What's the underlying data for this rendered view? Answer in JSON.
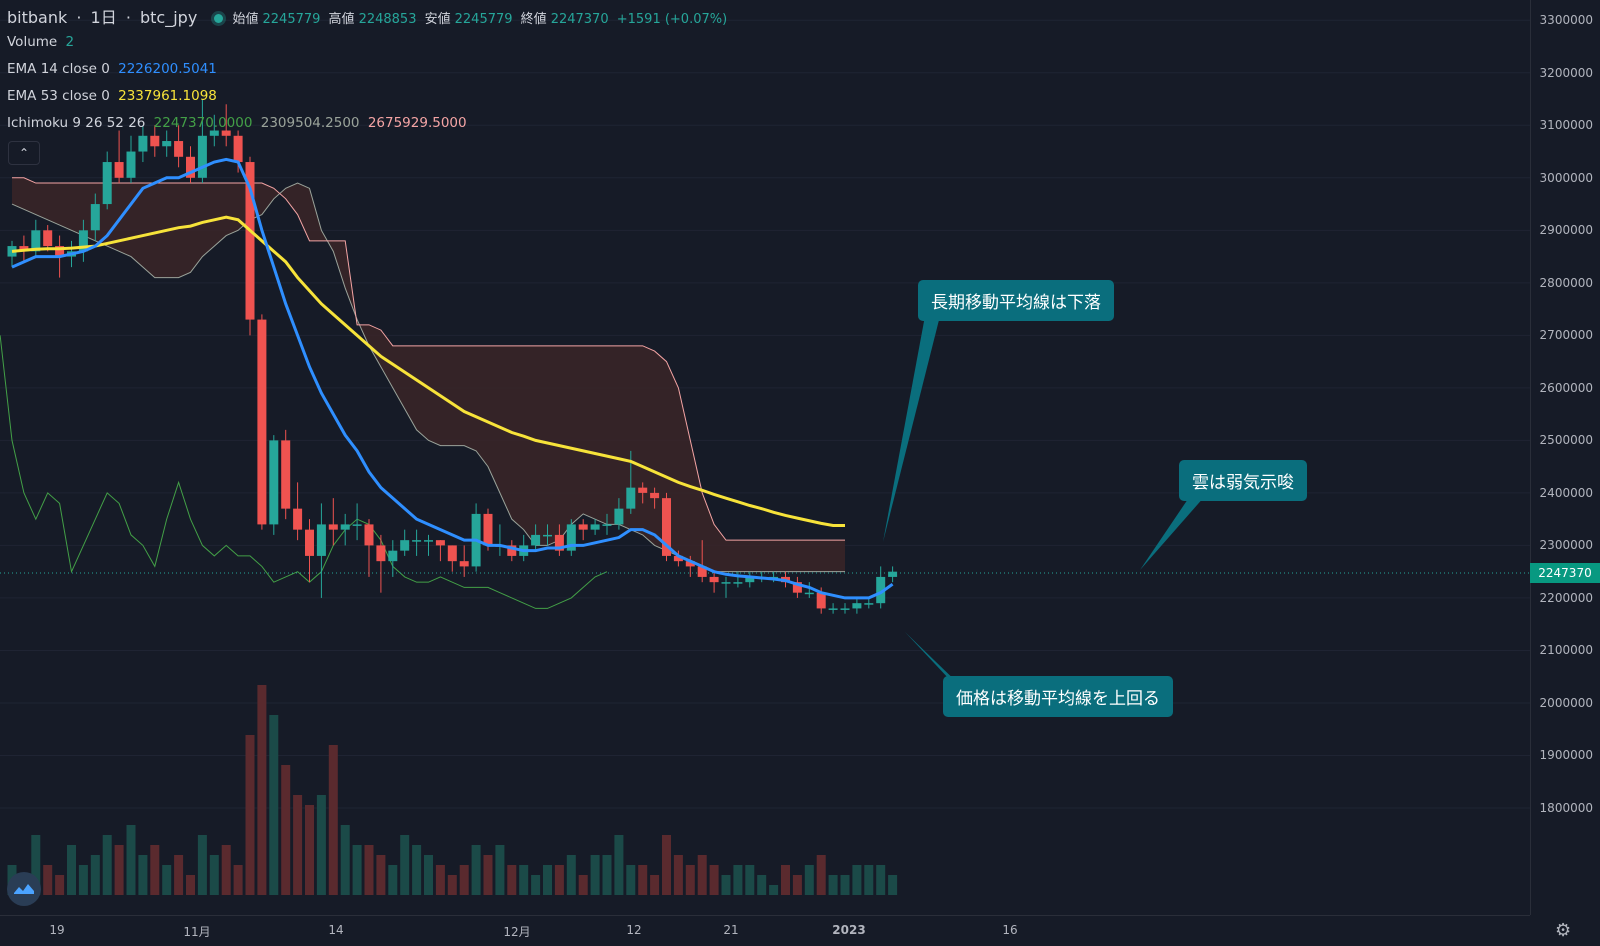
{
  "header": {
    "exchange": "bitbank",
    "interval": "1日",
    "symbol": "btc_jpy",
    "open_label": "始値",
    "open": "2245779",
    "high_label": "高値",
    "high": "2248853",
    "low_label": "安値",
    "low": "2245779",
    "close_label": "終値",
    "close": "2247370",
    "change": "+1591 (+0.07%)"
  },
  "indicators": {
    "volume_label": "Volume",
    "volume_value": "2",
    "ema14_label": "EMA 14 close 0",
    "ema14_value": "2226200.5041",
    "ema53_label": "EMA 53 close 0",
    "ema53_value": "2337961.1098",
    "ichimoku_label": "Ichimoku 9 26 52 26",
    "ichimoku_v1": "2247370.0000",
    "ichimoku_v2": "2309504.2500",
    "ichimoku_v3": "2675929.5000"
  },
  "collapse_icon": "chevron-up-icon",
  "price_tag": "2247370",
  "annotations": {
    "a1": "長期移動平均線は下落",
    "a2": "雲は弱気示唆",
    "a3": "価格は移動平均線を上回る"
  },
  "colors": {
    "up": "#26a69a",
    "down": "#ef5350",
    "ema14": "#2f8fff",
    "ema53": "#f7e33a",
    "chikou": "#43a047",
    "span_a": "#9aa39a",
    "span_b": "#f4a4a4",
    "cloud_bear": "#3a2428",
    "cloud_bull": "#1f3530",
    "callout": "#0a6e7d"
  },
  "chart_data": {
    "type": "candlestick",
    "title": "",
    "y_ticks": [
      1800000,
      1900000,
      2000000,
      2100000,
      2200000,
      2300000,
      2400000,
      2500000,
      2600000,
      2700000,
      2800000,
      2900000,
      3000000,
      3100000,
      3200000,
      3300000
    ],
    "x_ticks": [
      "19",
      "11月",
      "14",
      "12月",
      "12",
      "21",
      "2023",
      "16"
    ],
    "ylim": [
      1720000,
      3310000
    ],
    "last_price": 2247370,
    "candles": [
      [
        2850000,
        2870000,
        2880000,
        2830000
      ],
      [
        2870000,
        2860000,
        2890000,
        2840000
      ],
      [
        2860000,
        2900000,
        2920000,
        2850000
      ],
      [
        2900000,
        2870000,
        2910000,
        2860000
      ],
      [
        2870000,
        2850000,
        2890000,
        2810000
      ],
      [
        2850000,
        2860000,
        2880000,
        2830000
      ],
      [
        2860000,
        2900000,
        2920000,
        2840000
      ],
      [
        2900000,
        2950000,
        2970000,
        2880000
      ],
      [
        2950000,
        3030000,
        3050000,
        2940000
      ],
      [
        3030000,
        3000000,
        3090000,
        2990000
      ],
      [
        3000000,
        3050000,
        3080000,
        2990000
      ],
      [
        3050000,
        3080000,
        3100000,
        3030000
      ],
      [
        3080000,
        3060000,
        3100000,
        3040000
      ],
      [
        3060000,
        3070000,
        3090000,
        3040000
      ],
      [
        3070000,
        3040000,
        3100000,
        3020000
      ],
      [
        3040000,
        3000000,
        3060000,
        2990000
      ],
      [
        3000000,
        3080000,
        3150000,
        2990000
      ],
      [
        3080000,
        3090000,
        3120000,
        3060000
      ],
      [
        3090000,
        3080000,
        3140000,
        3060000
      ],
      [
        3080000,
        3030000,
        3090000,
        3010000
      ],
      [
        3030000,
        2730000,
        3040000,
        2700000
      ],
      [
        2730000,
        2340000,
        2740000,
        2330000
      ],
      [
        2340000,
        2500000,
        2510000,
        2320000
      ],
      [
        2500000,
        2370000,
        2520000,
        2350000
      ],
      [
        2370000,
        2330000,
        2420000,
        2310000
      ],
      [
        2330000,
        2280000,
        2350000,
        2230000
      ],
      [
        2280000,
        2340000,
        2380000,
        2200000
      ],
      [
        2340000,
        2330000,
        2390000,
        2300000
      ],
      [
        2330000,
        2340000,
        2360000,
        2300000
      ],
      [
        2340000,
        2340000,
        2380000,
        2310000
      ],
      [
        2340000,
        2300000,
        2350000,
        2240000
      ],
      [
        2300000,
        2270000,
        2320000,
        2210000
      ],
      [
        2270000,
        2290000,
        2310000,
        2240000
      ],
      [
        2290000,
        2310000,
        2330000,
        2280000
      ],
      [
        2310000,
        2310000,
        2330000,
        2280000
      ],
      [
        2310000,
        2310000,
        2320000,
        2280000
      ],
      [
        2310000,
        2300000,
        2310000,
        2270000
      ],
      [
        2300000,
        2270000,
        2300000,
        2250000
      ],
      [
        2270000,
        2260000,
        2300000,
        2240000
      ],
      [
        2260000,
        2360000,
        2380000,
        2250000
      ],
      [
        2360000,
        2300000,
        2370000,
        2290000
      ],
      [
        2300000,
        2300000,
        2340000,
        2280000
      ],
      [
        2300000,
        2280000,
        2310000,
        2270000
      ],
      [
        2280000,
        2300000,
        2320000,
        2270000
      ],
      [
        2300000,
        2320000,
        2340000,
        2290000
      ],
      [
        2320000,
        2320000,
        2340000,
        2300000
      ],
      [
        2320000,
        2290000,
        2340000,
        2280000
      ],
      [
        2290000,
        2340000,
        2350000,
        2280000
      ],
      [
        2340000,
        2330000,
        2350000,
        2310000
      ],
      [
        2330000,
        2340000,
        2350000,
        2320000
      ],
      [
        2340000,
        2340000,
        2360000,
        2320000
      ],
      [
        2340000,
        2370000,
        2390000,
        2330000
      ],
      [
        2370000,
        2410000,
        2480000,
        2360000
      ],
      [
        2410000,
        2400000,
        2420000,
        2380000
      ],
      [
        2400000,
        2390000,
        2410000,
        2370000
      ],
      [
        2390000,
        2280000,
        2400000,
        2270000
      ],
      [
        2280000,
        2270000,
        2290000,
        2260000
      ],
      [
        2270000,
        2260000,
        2280000,
        2240000
      ],
      [
        2260000,
        2240000,
        2310000,
        2230000
      ],
      [
        2240000,
        2230000,
        2250000,
        2210000
      ],
      [
        2230000,
        2230000,
        2240000,
        2200000
      ],
      [
        2230000,
        2230000,
        2250000,
        2220000
      ],
      [
        2230000,
        2240000,
        2250000,
        2220000
      ],
      [
        2240000,
        2240000,
        2250000,
        2230000
      ],
      [
        2240000,
        2240000,
        2250000,
        2230000
      ],
      [
        2240000,
        2230000,
        2250000,
        2220000
      ],
      [
        2230000,
        2210000,
        2240000,
        2200000
      ],
      [
        2210000,
        2210000,
        2230000,
        2200000
      ],
      [
        2210000,
        2180000,
        2220000,
        2170000
      ],
      [
        2180000,
        2180000,
        2190000,
        2170000
      ],
      [
        2180000,
        2180000,
        2190000,
        2170000
      ],
      [
        2180000,
        2190000,
        2200000,
        2170000
      ],
      [
        2190000,
        2190000,
        2200000,
        2180000
      ],
      [
        2190000,
        2240000,
        2260000,
        2180000
      ],
      [
        2240000,
        2250000,
        2260000,
        2230000
      ]
    ],
    "volume": [
      0.3,
      0.2,
      0.6,
      0.3,
      0.2,
      0.5,
      0.3,
      0.4,
      0.6,
      0.5,
      0.7,
      0.4,
      0.5,
      0.3,
      0.4,
      0.2,
      0.6,
      0.4,
      0.5,
      0.3,
      1.6,
      2.1,
      1.8,
      1.3,
      1.0,
      0.9,
      1.0,
      1.5,
      0.7,
      0.5,
      0.5,
      0.4,
      0.3,
      0.6,
      0.5,
      0.4,
      0.3,
      0.2,
      0.3,
      0.5,
      0.4,
      0.5,
      0.3,
      0.3,
      0.2,
      0.3,
      0.3,
      0.4,
      0.2,
      0.4,
      0.4,
      0.6,
      0.3,
      0.3,
      0.2,
      0.6,
      0.4,
      0.3,
      0.4,
      0.3,
      0.2,
      0.3,
      0.3,
      0.2,
      0.1,
      0.3,
      0.2,
      0.3,
      0.4,
      0.2,
      0.2,
      0.3,
      0.3,
      0.3,
      0.2
    ],
    "ema14": [
      2830000,
      2840000,
      2850000,
      2850000,
      2850000,
      2855000,
      2860000,
      2870000,
      2890000,
      2920000,
      2950000,
      2980000,
      2990000,
      3000000,
      3000000,
      3010000,
      3020000,
      3030000,
      3035000,
      3030000,
      2980000,
      2900000,
      2830000,
      2760000,
      2700000,
      2640000,
      2590000,
      2550000,
      2510000,
      2480000,
      2440000,
      2410000,
      2390000,
      2370000,
      2350000,
      2340000,
      2330000,
      2320000,
      2310000,
      2310000,
      2300000,
      2300000,
      2295000,
      2290000,
      2290000,
      2295000,
      2295000,
      2300000,
      2300000,
      2305000,
      2310000,
      2315000,
      2330000,
      2330000,
      2320000,
      2300000,
      2280000,
      2270000,
      2260000,
      2250000,
      2245000,
      2242000,
      2240000,
      2238000,
      2236000,
      2233000,
      2226000,
      2220000,
      2210000,
      2205000,
      2200000,
      2200000,
      2200000,
      2210000,
      2226200
    ],
    "ema53": [
      2860000,
      2862000,
      2864000,
      2865000,
      2865000,
      2866000,
      2868000,
      2870000,
      2875000,
      2880000,
      2885000,
      2890000,
      2895000,
      2900000,
      2905000,
      2908000,
      2915000,
      2920000,
      2925000,
      2920000,
      2900000,
      2880000,
      2860000,
      2840000,
      2810000,
      2785000,
      2760000,
      2740000,
      2720000,
      2700000,
      2680000,
      2660000,
      2645000,
      2630000,
      2615000,
      2600000,
      2585000,
      2570000,
      2555000,
      2545000,
      2535000,
      2525000,
      2515000,
      2508000,
      2500000,
      2495000,
      2490000,
      2485000,
      2480000,
      2475000,
      2470000,
      2465000,
      2460000,
      2450000,
      2440000,
      2430000,
      2420000,
      2412000,
      2405000,
      2397000,
      2390000,
      2383000,
      2376000,
      2370000,
      2363000,
      2357000,
      2352000,
      2347000,
      2342000,
      2338000,
      2337961
    ],
    "chikou": [
      2700000,
      2500000,
      2400000,
      2350000,
      2400000,
      2380000,
      2250000,
      2300000,
      2350000,
      2400000,
      2380000,
      2320000,
      2300000,
      2260000,
      2350000,
      2420000,
      2350000,
      2300000,
      2280000,
      2300000,
      2280000,
      2280000,
      2260000,
      2230000,
      2240000,
      2250000,
      2230000,
      2250000,
      2300000,
      2330000,
      2350000,
      2340000,
      2310000,
      2260000,
      2240000,
      2230000,
      2230000,
      2240000,
      2230000,
      2220000,
      2220000,
      2220000,
      2210000,
      2200000,
      2190000,
      2180000,
      2180000,
      2190000,
      2200000,
      2220000,
      2240000,
      2250000
    ],
    "span_a": [
      2950000,
      2940000,
      2930000,
      2920000,
      2910000,
      2900000,
      2890000,
      2880000,
      2870000,
      2860000,
      2850000,
      2830000,
      2810000,
      2810000,
      2810000,
      2820000,
      2850000,
      2870000,
      2890000,
      2900000,
      2920000,
      2930000,
      2960000,
      2980000,
      2990000,
      2980000,
      2900000,
      2860000,
      2790000,
      2730000,
      2680000,
      2640000,
      2600000,
      2560000,
      2520000,
      2500000,
      2490000,
      2490000,
      2490000,
      2480000,
      2450000,
      2400000,
      2350000,
      2330000,
      2300000,
      2300000,
      2310000,
      2340000,
      2360000,
      2350000,
      2340000,
      2340000,
      2330000,
      2320000,
      2300000,
      2290000,
      2280000,
      2270000,
      2260000,
      2250000,
      2250000,
      2250000,
      2250000,
      2250000,
      2250000,
      2250000,
      2250000,
      2250000,
      2250000,
      2250000,
      2250000
    ],
    "span_b": [
      3000000,
      3000000,
      2990000,
      2990000,
      2990000,
      2990000,
      2990000,
      2990000,
      2990000,
      2990000,
      2990000,
      2990000,
      2990000,
      2990000,
      2990000,
      2990000,
      2990000,
      2990000,
      2990000,
      2990000,
      2990000,
      2990000,
      2980000,
      2960000,
      2930000,
      2880000,
      2880000,
      2880000,
      2880000,
      2720000,
      2720000,
      2710000,
      2680000,
      2680000,
      2680000,
      2680000,
      2680000,
      2680000,
      2680000,
      2680000,
      2680000,
      2680000,
      2680000,
      2680000,
      2680000,
      2680000,
      2680000,
      2680000,
      2680000,
      2680000,
      2680000,
      2680000,
      2680000,
      2680000,
      2670000,
      2650000,
      2600000,
      2500000,
      2400000,
      2340000,
      2310000,
      2310000,
      2310000,
      2310000,
      2310000,
      2310000,
      2310000,
      2310000,
      2310000,
      2310000,
      2310000
    ]
  }
}
